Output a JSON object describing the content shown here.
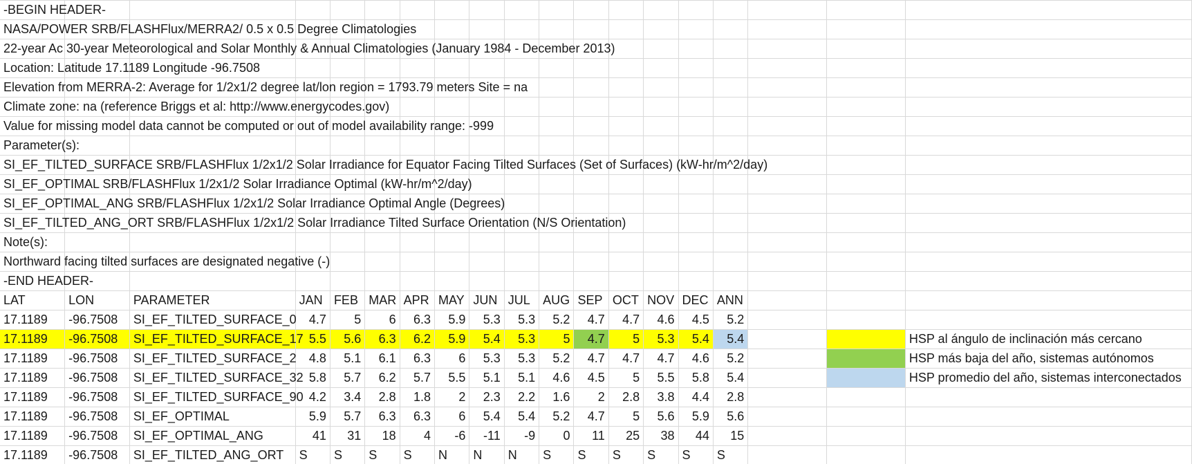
{
  "header_lines": [
    "-BEGIN HEADER-",
    "NASA/POWER SRB/FLASHFlux/MERRA2/ 0.5 x 0.5 Degree Climatologies",
    "22-year Ac 30-year Meteorological and Solar Monthly & Annual Climatologies (January 1984 - December 2013)",
    "Location: Latitude  17.1189   Longitude -96.7508",
    "Elevation from MERRA-2: Average for 1/2x1/2 degree lat/lon region = 1793.79 meters   Site = na",
    "Climate zone: na (reference Briggs et al: http://www.energycodes.gov)",
    "Value for missing model data cannot be computed or out of model availability range: -999",
    "Parameter(s):",
    "SI_EF_TILTED_SURFACE SRB/FLASHFlux 1/2x1/2 Solar Irradiance for Equator Facing Tilted Surfaces (Set of Surfaces) (kW-hr/m^2/day)",
    "SI_EF_OPTIMAL SRB/FLASHFlux 1/2x1/2 Solar Irradiance Optimal (kW-hr/m^2/day)",
    "SI_EF_OPTIMAL_ANG SRB/FLASHFlux 1/2x1/2 Solar Irradiance Optimal Angle (Degrees)",
    "SI_EF_TILTED_ANG_ORT SRB/FLASHFlux 1/2x1/2 Solar Irradiance Tilted Surface Orientation (N/S Orientation)",
    "Note(s):",
    "Northward facing tilted surfaces are designated negative (-)",
    "-END HEADER-"
  ],
  "columns": [
    "LAT",
    "LON",
    "PARAMETER",
    "JAN",
    "FEB",
    "MAR",
    "APR",
    "MAY",
    "JUN",
    "JUL",
    "AUG",
    "SEP",
    "OCT",
    "NOV",
    "DEC",
    "ANN"
  ],
  "rows": [
    {
      "cells": [
        "17.1189",
        "-96.7508",
        "SI_EF_TILTED_SURFACE_0",
        "4.7",
        "5",
        "6",
        "6.3",
        "5.9",
        "5.3",
        "5.3",
        "5.2",
        "4.7",
        "4.7",
        "4.6",
        "4.5",
        "5.2"
      ]
    },
    {
      "cells": [
        "17.1189",
        "-96.7508",
        "SI_EF_TILTED_SURFACE_17",
        "5.5",
        "5.6",
        "6.3",
        "6.2",
        "5.9",
        "5.4",
        "5.3",
        "5",
        "4.7",
        "5",
        "5.3",
        "5.4",
        "5.4"
      ]
    },
    {
      "cells": [
        "17.1189",
        "-96.7508",
        "SI_EF_TILTED_SURFACE_2",
        "4.8",
        "5.1",
        "6.1",
        "6.3",
        "6",
        "5.3",
        "5.3",
        "5.2",
        "4.7",
        "4.7",
        "4.7",
        "4.6",
        "5.2"
      ]
    },
    {
      "cells": [
        "17.1189",
        "-96.7508",
        "SI_EF_TILTED_SURFACE_32",
        "5.8",
        "5.7",
        "6.2",
        "5.7",
        "5.5",
        "5.1",
        "5.1",
        "4.6",
        "4.5",
        "5",
        "5.5",
        "5.8",
        "5.4"
      ]
    },
    {
      "cells": [
        "17.1189",
        "-96.7508",
        "SI_EF_TILTED_SURFACE_90",
        "4.2",
        "3.4",
        "2.8",
        "1.8",
        "2",
        "2.3",
        "2.2",
        "1.6",
        "2",
        "2.8",
        "3.8",
        "4.4",
        "2.8"
      ]
    },
    {
      "cells": [
        "17.1189",
        "-96.7508",
        "SI_EF_OPTIMAL",
        "5.9",
        "5.7",
        "6.3",
        "6.3",
        "6",
        "5.4",
        "5.4",
        "5.2",
        "4.7",
        "5",
        "5.6",
        "5.9",
        "5.6"
      ]
    },
    {
      "cells": [
        "17.1189",
        "-96.7508",
        "SI_EF_OPTIMAL_ANG",
        "41",
        "31",
        "18",
        "4",
        "-6",
        "-11",
        "-9",
        "0",
        "11",
        "25",
        "38",
        "44",
        "15"
      ]
    },
    {
      "cells": [
        "17.1189",
        "-96.7508",
        "SI_EF_TILTED_ANG_ORT",
        "S",
        "S",
        "S",
        "S",
        "N",
        "N",
        "N",
        "S",
        "S",
        "S",
        "S",
        "S",
        "S"
      ]
    }
  ],
  "legend": [
    {
      "color": "#ffff00",
      "label": "HSP al ángulo de inclinación más cercano"
    },
    {
      "color": "#92d050",
      "label": "HSP más baja del año, sistemas autónomos"
    },
    {
      "color": "#bdd7ee",
      "label": "HSP promedio del año, sistemas interconectados"
    }
  ],
  "colors": {
    "highlight_row": "#ffff00",
    "lowest_month": "#92d050",
    "annual_average": "#bdd7ee",
    "gridline": "#d9d9d9"
  }
}
